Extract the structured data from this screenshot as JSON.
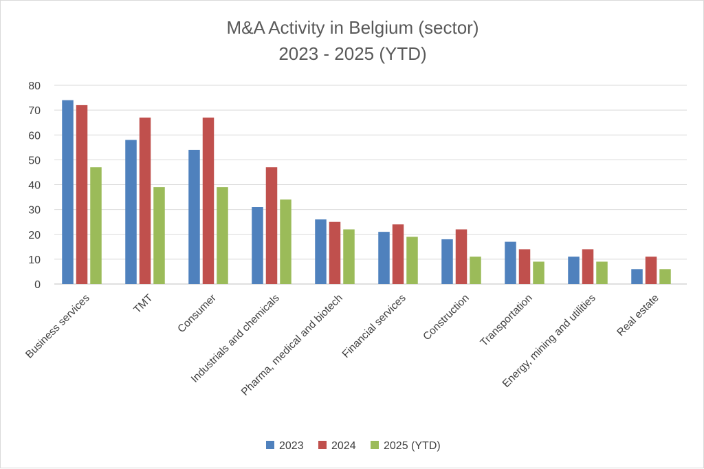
{
  "chart_data": {
    "type": "bar",
    "title_line1": "M&A Activity in Belgium (sector)",
    "title_line2": "2023 - 2025 (YTD)",
    "xlabel": "",
    "ylabel": "",
    "ylim": [
      0,
      80
    ],
    "yticks": [
      0,
      10,
      20,
      30,
      40,
      50,
      60,
      70,
      80
    ],
    "grid": true,
    "legend_position": "bottom",
    "categories": [
      "Business services",
      "TMT",
      "Consumer",
      "Industrials and chemicals",
      "Pharma, medical and biotech",
      "Financial services",
      "Construction",
      "Transportation",
      "Energy, mining and utilities",
      "Real estate"
    ],
    "series": [
      {
        "name": "2023",
        "color": "#4f81bd",
        "values": [
          74,
          58,
          54,
          31,
          26,
          21,
          18,
          17,
          11,
          6
        ]
      },
      {
        "name": "2024",
        "color": "#c0504d",
        "values": [
          72,
          67,
          67,
          47,
          25,
          24,
          22,
          14,
          14,
          11
        ]
      },
      {
        "name": "2025 (YTD)",
        "color": "#9bbb59",
        "values": [
          47,
          39,
          39,
          34,
          22,
          19,
          11,
          9,
          9,
          6
        ]
      }
    ]
  }
}
